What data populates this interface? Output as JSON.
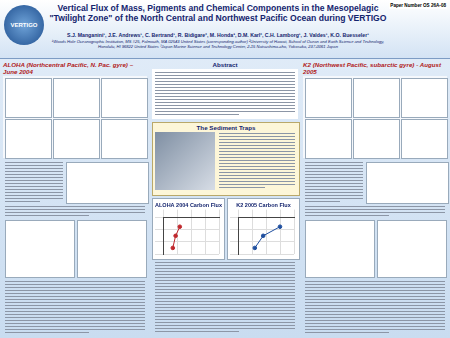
{
  "header": {
    "paper_number": "Paper Number OS 26A-08",
    "logo": "VERTIGO",
    "title": "Vertical Flux of Mass, Pigments and Chemical Components in the Mesopelagic \"Twilight Zone\" of the North Central and Northwest Pacific Ocean during VERTIGO",
    "authors": "S.J. Manganini¹, J.E. Andrews¹, C. Bertrand¹, R. Bidigare², M. Honda³, D.M. Karl², C.H. Lamborg¹, J. Valdes¹, K.O. Buesseler¹",
    "affiliations": "¹Woods Hole Oceanographic Institution, MS #25, Falmouth, MA 02543 United States (corresponding author) ²University of Hawaii, School of Ocean and Earth Science and Technology, Honolulu, HI 96822 United States ³Japan Marine Science and Technology Center, 2-15 Natsushima-cho, Yokosuka, 237-0061 Japan"
  },
  "sections": {
    "left": "ALOHA (Northcentral Pacific, N. Pac. gyre) – June 2004",
    "abstract": "Abstract",
    "traps": "The Sediment Traps",
    "right": "K2 (Northwest Pacific, subarctic gyre) - August 2005"
  },
  "chart_data": [
    {
      "type": "line",
      "title": "ALOHA 2004 Carbon Flux",
      "x": [
        1.2,
        0.9,
        0.7
      ],
      "values": [
        150,
        300,
        500
      ],
      "color": "#c0282d",
      "marker": "circle",
      "xlim": [
        0,
        4
      ],
      "xticks": [
        0,
        1,
        2,
        3,
        4
      ],
      "ylim": [
        600,
        0
      ],
      "yticks": [
        0,
        200,
        400,
        600
      ],
      "grid": true,
      "tick_labels": false
    },
    {
      "type": "line",
      "title": "K2 2005 Carbon Flux",
      "x": [
        3.0,
        1.8,
        1.2
      ],
      "values": [
        150,
        300,
        500
      ],
      "color": "#1f4f9f",
      "marker": "circle",
      "xlim": [
        0,
        4
      ],
      "xticks": [
        0,
        1,
        2,
        3,
        4
      ],
      "ylim": [
        600,
        0
      ],
      "yticks": [
        0,
        200,
        400,
        600
      ],
      "grid": true,
      "tick_labels": false
    }
  ]
}
